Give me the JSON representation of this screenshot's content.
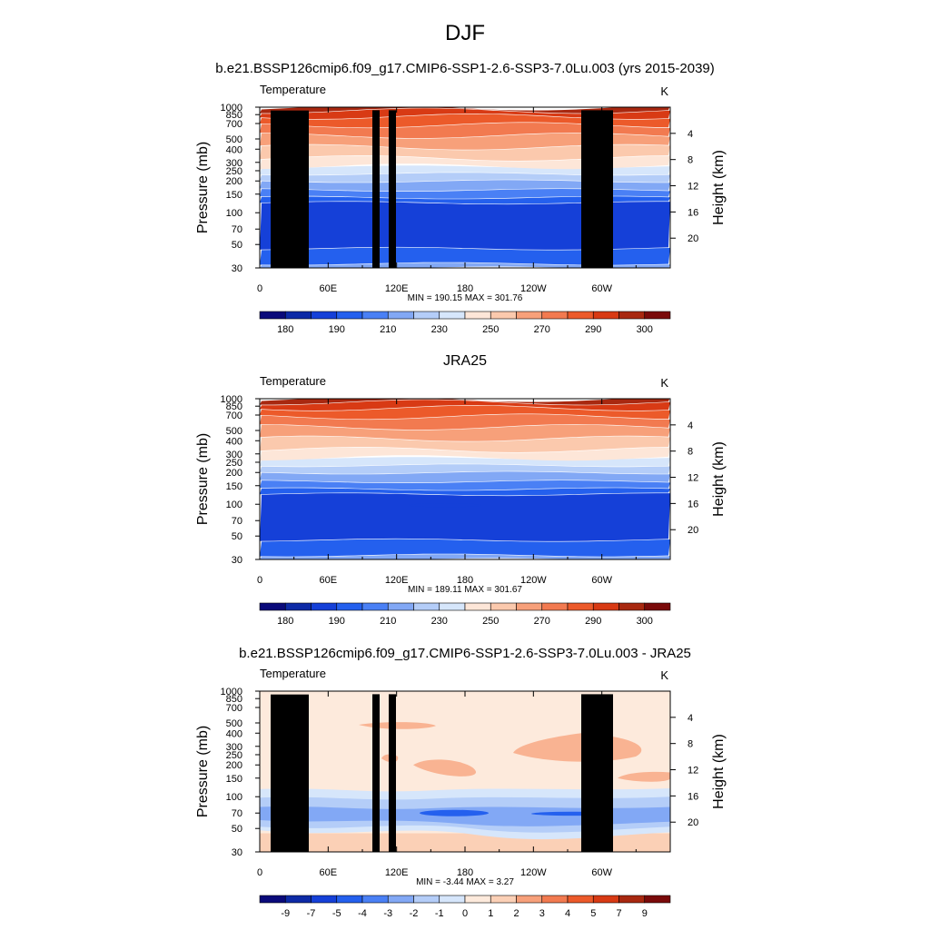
{
  "page": {
    "title": "DJF",
    "subtitle": "b.e21.BSSP126cmip6.f09_g17.CMIP6-SSP1-2.6-SSP3-7.0Lu.003 (yrs 2015-2039)"
  },
  "chart_data": [
    {
      "type": "heatmap",
      "title": "",
      "left_label": "Temperature",
      "right_label": "K",
      "ylabel": "Pressure (mb)",
      "y2label": "Height (km)",
      "xticks": [
        "0",
        "60E",
        "120E",
        "180",
        "120W",
        "60W"
      ],
      "xtick_lon": [
        0,
        60,
        120,
        180,
        240,
        300
      ],
      "xlim": [
        0,
        360
      ],
      "pressure_ticks": [
        "30",
        "50",
        "70",
        "100",
        "150",
        "200",
        "250",
        "300",
        "400",
        "500",
        "700",
        "850",
        "1000"
      ],
      "pressure_values": [
        30,
        50,
        70,
        100,
        150,
        200,
        250,
        300,
        400,
        500,
        700,
        850,
        1000
      ],
      "height_ticks": [
        "20",
        "16",
        "12",
        "8",
        "4"
      ],
      "height_values": [
        20,
        16,
        12,
        8,
        4
      ],
      "ylim": [
        1000,
        30
      ],
      "stats": "MIN = 190.15  MAX = 301.76",
      "min": 190.15,
      "max": 301.76,
      "colorbar_labels": [
        "180",
        "190",
        "210",
        "230",
        "250",
        "270",
        "290",
        "300"
      ],
      "colorbar_colors": [
        "#0a0a7a",
        "#0d2aa6",
        "#1540d8",
        "#2460ee",
        "#4a80f5",
        "#82a8f5",
        "#b4cdf8",
        "#d6e6fb",
        "#fde6d8",
        "#fbc9ad",
        "#f7a07a",
        "#f27a50",
        "#ec5a2a",
        "#d83a14",
        "#a82810",
        "#7a0a0a"
      ],
      "layer_colors": [
        "#82a8f5",
        "#2460ee",
        "#1540d8",
        "#2460ee",
        "#4a80f5",
        "#82a8f5",
        "#b4cdf8",
        "#d6e6fb",
        "#fde6d8",
        "#fbc9ad",
        "#f7a07a",
        "#f27a50",
        "#ec5a2a",
        "#d83a14",
        "#a82810"
      ],
      "terrain": true
    },
    {
      "type": "heatmap",
      "title": "JRA25",
      "left_label": "Temperature",
      "right_label": "K",
      "ylabel": "Pressure (mb)",
      "y2label": "Height (km)",
      "xticks": [
        "0",
        "60E",
        "120E",
        "180",
        "120W",
        "60W"
      ],
      "xtick_lon": [
        0,
        60,
        120,
        180,
        240,
        300
      ],
      "xlim": [
        0,
        360
      ],
      "pressure_ticks": [
        "30",
        "50",
        "70",
        "100",
        "150",
        "200",
        "250",
        "300",
        "400",
        "500",
        "700",
        "850",
        "1000"
      ],
      "pressure_values": [
        30,
        50,
        70,
        100,
        150,
        200,
        250,
        300,
        400,
        500,
        700,
        850,
        1000
      ],
      "height_ticks": [
        "20",
        "16",
        "12",
        "8",
        "4"
      ],
      "height_values": [
        20,
        16,
        12,
        8,
        4
      ],
      "ylim": [
        1000,
        30
      ],
      "stats": "MIN = 189.11  MAX = 301.67",
      "min": 189.11,
      "max": 301.67,
      "colorbar_labels": [
        "180",
        "190",
        "210",
        "230",
        "250",
        "270",
        "290",
        "300"
      ],
      "colorbar_colors": [
        "#0a0a7a",
        "#0d2aa6",
        "#1540d8",
        "#2460ee",
        "#4a80f5",
        "#82a8f5",
        "#b4cdf8",
        "#d6e6fb",
        "#fde6d8",
        "#fbc9ad",
        "#f7a07a",
        "#f27a50",
        "#ec5a2a",
        "#d83a14",
        "#a82810",
        "#7a0a0a"
      ],
      "layer_colors": [
        "#82a8f5",
        "#2460ee",
        "#1540d8",
        "#2460ee",
        "#4a80f5",
        "#82a8f5",
        "#b4cdf8",
        "#d6e6fb",
        "#fde6d8",
        "#fbc9ad",
        "#f7a07a",
        "#f27a50",
        "#ec5a2a",
        "#d83a14",
        "#a82810"
      ],
      "terrain": false
    },
    {
      "type": "heatmap",
      "title": "b.e21.BSSP126cmip6.f09_g17.CMIP6-SSP1-2.6-SSP3-7.0Lu.003 - JRA25",
      "left_label": "Temperature",
      "right_label": "K",
      "ylabel": "Pressure (mb)",
      "y2label": "Height (km)",
      "xticks": [
        "0",
        "60E",
        "120E",
        "180",
        "120W",
        "60W"
      ],
      "xtick_lon": [
        0,
        60,
        120,
        180,
        240,
        300
      ],
      "xlim": [
        0,
        360
      ],
      "pressure_ticks": [
        "30",
        "50",
        "70",
        "100",
        "150",
        "200",
        "250",
        "300",
        "400",
        "500",
        "700",
        "850",
        "1000"
      ],
      "pressure_values": [
        30,
        50,
        70,
        100,
        150,
        200,
        250,
        300,
        400,
        500,
        700,
        850,
        1000
      ],
      "height_ticks": [
        "20",
        "16",
        "12",
        "8",
        "4"
      ],
      "height_values": [
        20,
        16,
        12,
        8,
        4
      ],
      "ylim": [
        1000,
        30
      ],
      "stats": "MIN =  -3.44  MAX =   3.27",
      "min": -3.44,
      "max": 3.27,
      "colorbar_labels": [
        "-9",
        "-7",
        "-5",
        "-4",
        "-3",
        "-2",
        "-1",
        "0",
        "1",
        "2",
        "3",
        "4",
        "5",
        "7",
        "9"
      ],
      "colorbar_colors": [
        "#0a0a7a",
        "#0d2aa6",
        "#1540d8",
        "#2460ee",
        "#4a80f5",
        "#82a8f5",
        "#b4cdf8",
        "#d6e6fb",
        "#fdeadc",
        "#fbd0b6",
        "#f7a07a",
        "#f27a50",
        "#ec5a2a",
        "#d83a14",
        "#a82810",
        "#7a0a0a"
      ],
      "terrain": true
    }
  ]
}
